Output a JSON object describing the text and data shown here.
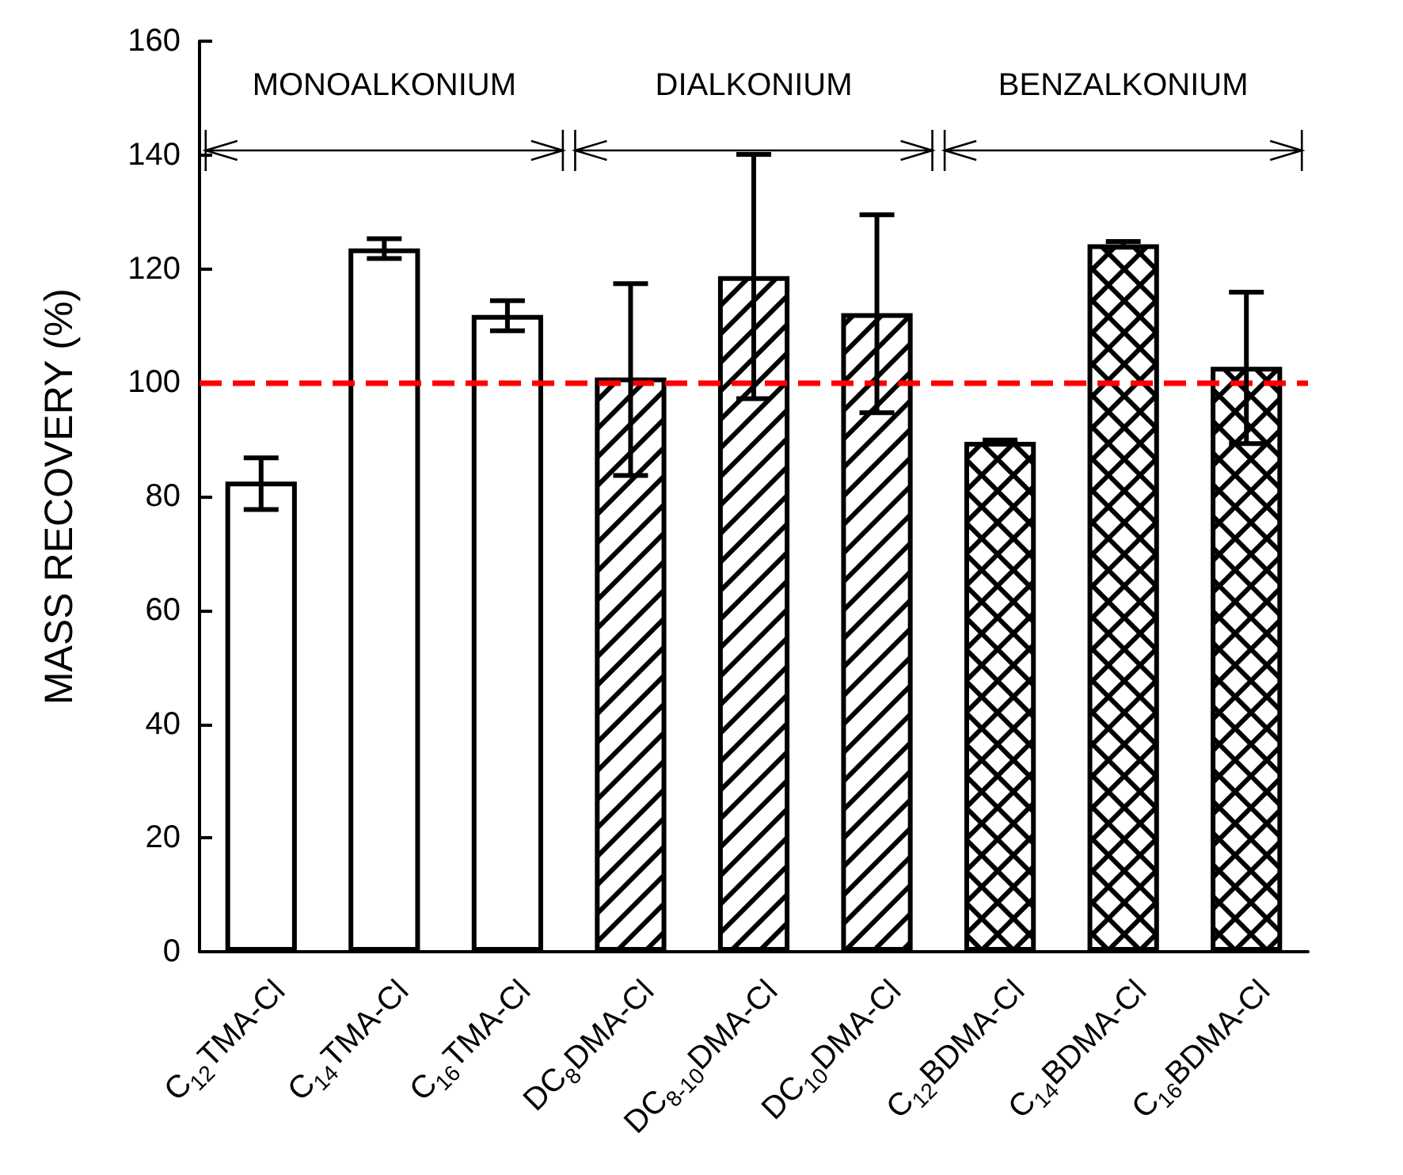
{
  "chart_data": {
    "type": "bar",
    "ylabel": "MASS RECOVERY (%)",
    "categories": [
      "C$_{12}$TMA-Cl",
      "C$_{14}$TMA-Cl",
      "C$_{16}$TMA-Cl",
      "DC$_{8}$DMA-Cl",
      "DC$_{8-10}$DMA-Cl",
      "DC$_{10}$DMA-Cl",
      "C$_{12}$BDMA-Cl",
      "C$_{14}$BDMA-Cl",
      "C$_{16}$BDMA-Cl"
    ],
    "series": [
      {
        "color": "#000000",
        "values": [
          82.6,
          123.6,
          111.9,
          null,
          null,
          null,
          null,
          null,
          null
        ],
        "errors": [
          [
            77.7,
            86.8
          ],
          [
            121.8,
            125.3
          ],
          [
            109.1,
            114.4
          ],
          null,
          null,
          null,
          null,
          null,
          null
        ]
      },
      {
        "color": "#000000",
        "values": [
          null,
          null,
          null,
          100.9,
          118.7,
          112.2,
          null,
          null,
          null
        ],
        "errors": [
          null,
          null,
          null,
          [
            83.7,
            117.4
          ],
          [
            97.2,
            140.1
          ],
          [
            94.7,
            129.5
          ],
          null,
          null,
          null
        ]
      },
      {
        "color": "#000000",
        "values": [
          null,
          null,
          null,
          null,
          null,
          null,
          89.6,
          124.3,
          102.8
        ],
        "errors": [
          null,
          null,
          null,
          null,
          null,
          null,
          [
            89.3,
            89.9
          ],
          [
            123.8,
            124.8
          ],
          [
            89.3,
            115.9
          ]
        ]
      }
    ],
    "annotations": [
      "MONOALKONIUM",
      "DIALKONIUM",
      "BENZALKONIUM"
    ],
    "ylim": [
      0,
      160
    ],
    "yticks": [
      0,
      20,
      40,
      60,
      80,
      100,
      120,
      140,
      160
    ],
    "ref_lines": [
      {
        "axis": "y",
        "value": 100,
        "color": "#ff0000",
        "line_style": "dashed"
      }
    ]
  }
}
